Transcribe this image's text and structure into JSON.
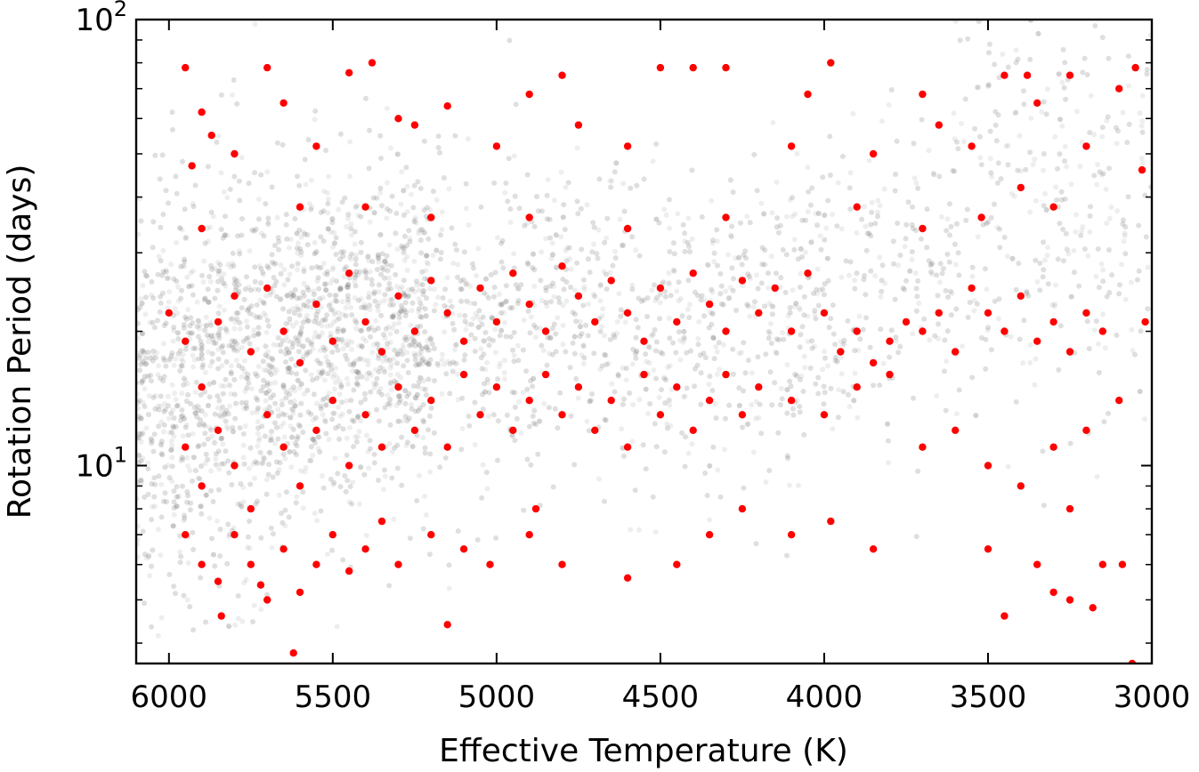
{
  "chart_data": {
    "type": "scatter",
    "xlabel": "Effective Temperature (K)",
    "ylabel": "Rotation Period (days)",
    "xlim": [
      6100,
      3000
    ],
    "x_inverted": true,
    "ylim": [
      3.6,
      100
    ],
    "y_scale": "log",
    "grid": false,
    "x_ticks": [
      {
        "value": 6000,
        "label": "6000"
      },
      {
        "value": 5500,
        "label": "5500"
      },
      {
        "value": 5000,
        "label": "5000"
      },
      {
        "value": 4500,
        "label": "4500"
      },
      {
        "value": 4000,
        "label": "4000"
      },
      {
        "value": 3500,
        "label": "3500"
      },
      {
        "value": 3000,
        "label": "3000"
      }
    ],
    "y_ticks": [
      {
        "value": 10,
        "base": "10",
        "exp": "1"
      },
      {
        "value": 100,
        "base": "10",
        "exp": "2"
      }
    ],
    "series": [
      {
        "role": "background",
        "color": "#7f7f7f",
        "description_of_trend": [
          {
            "teff": 6000,
            "p_median": 15
          },
          {
            "teff": 5800,
            "p_median": 19
          },
          {
            "teff": 5500,
            "p_median": 21
          },
          {
            "teff": 5000,
            "p_median": 22
          },
          {
            "teff": 4500,
            "p_median": 23
          },
          {
            "teff": 4000,
            "p_median": 24
          },
          {
            "teff": 3700,
            "p_median": 30
          },
          {
            "teff": 3500,
            "p_median": 40
          }
        ]
      },
      {
        "role": "highlight",
        "color": "#ff0000",
        "points": [
          [
            5950,
            78
          ],
          [
            5900,
            62
          ],
          [
            5870,
            55
          ],
          [
            5930,
            47
          ],
          [
            5800,
            50
          ],
          [
            5700,
            78
          ],
          [
            5650,
            65
          ],
          [
            5550,
            52
          ],
          [
            5450,
            76
          ],
          [
            5380,
            80
          ],
          [
            5300,
            60
          ],
          [
            5250,
            58
          ],
          [
            5150,
            64
          ],
          [
            5000,
            52
          ],
          [
            4900,
            68
          ],
          [
            4800,
            75
          ],
          [
            4750,
            58
          ],
          [
            4600,
            52
          ],
          [
            4500,
            78
          ],
          [
            4400,
            78
          ],
          [
            4300,
            78
          ],
          [
            4100,
            52
          ],
          [
            4050,
            68
          ],
          [
            3980,
            80
          ],
          [
            3850,
            50
          ],
          [
            3700,
            68
          ],
          [
            3650,
            58
          ],
          [
            3550,
            52
          ],
          [
            3450,
            75
          ],
          [
            3380,
            75
          ],
          [
            3350,
            65
          ],
          [
            3250,
            75
          ],
          [
            3200,
            52
          ],
          [
            3100,
            70
          ],
          [
            3050,
            78
          ],
          [
            3030,
            46
          ],
          [
            5900,
            34
          ],
          [
            5600,
            38
          ],
          [
            5400,
            38
          ],
          [
            5200,
            36
          ],
          [
            4900,
            36
          ],
          [
            4600,
            34
          ],
          [
            4300,
            36
          ],
          [
            3900,
            38
          ],
          [
            3700,
            34
          ],
          [
            3520,
            36
          ],
          [
            3400,
            42
          ],
          [
            3300,
            38
          ],
          [
            6000,
            22
          ],
          [
            5950,
            19
          ],
          [
            5900,
            15
          ],
          [
            5850,
            21
          ],
          [
            5800,
            24
          ],
          [
            5750,
            18
          ],
          [
            5700,
            25
          ],
          [
            5650,
            20
          ],
          [
            5600,
            17
          ],
          [
            5550,
            23
          ],
          [
            5500,
            19
          ],
          [
            5450,
            27
          ],
          [
            5400,
            21
          ],
          [
            5350,
            18
          ],
          [
            5300,
            24
          ],
          [
            5250,
            20
          ],
          [
            5200,
            26
          ],
          [
            5150,
            22
          ],
          [
            5100,
            19
          ],
          [
            5050,
            25
          ],
          [
            5000,
            21
          ],
          [
            4950,
            27
          ],
          [
            4900,
            23
          ],
          [
            4850,
            20
          ],
          [
            4800,
            28
          ],
          [
            4750,
            24
          ],
          [
            4700,
            21
          ],
          [
            4650,
            26
          ],
          [
            4600,
            22
          ],
          [
            4550,
            19
          ],
          [
            4500,
            25
          ],
          [
            4450,
            21
          ],
          [
            4400,
            27
          ],
          [
            4350,
            23
          ],
          [
            4300,
            20
          ],
          [
            4250,
            26
          ],
          [
            4200,
            22
          ],
          [
            4150,
            25
          ],
          [
            4100,
            20
          ],
          [
            4050,
            27
          ],
          [
            4000,
            22
          ],
          [
            3950,
            18
          ],
          [
            3900,
            20
          ],
          [
            3850,
            17
          ],
          [
            3800,
            19
          ],
          [
            3750,
            21
          ],
          [
            3700,
            20
          ],
          [
            3650,
            22
          ],
          [
            3600,
            18
          ],
          [
            3550,
            25
          ],
          [
            3500,
            22
          ],
          [
            3450,
            20
          ],
          [
            3400,
            24
          ],
          [
            3350,
            19
          ],
          [
            3300,
            21
          ],
          [
            3250,
            18
          ],
          [
            3200,
            22
          ],
          [
            3150,
            20
          ],
          [
            3020,
            21
          ],
          [
            5950,
            11
          ],
          [
            5900,
            9
          ],
          [
            5850,
            12
          ],
          [
            5800,
            10
          ],
          [
            5750,
            8
          ],
          [
            5700,
            13
          ],
          [
            5650,
            11
          ],
          [
            5600,
            9
          ],
          [
            5550,
            12
          ],
          [
            5500,
            14
          ],
          [
            5450,
            10
          ],
          [
            5400,
            13
          ],
          [
            5350,
            11
          ],
          [
            5300,
            15
          ],
          [
            5250,
            12
          ],
          [
            5200,
            14
          ],
          [
            5150,
            11
          ],
          [
            5100,
            16
          ],
          [
            5050,
            13
          ],
          [
            5000,
            15
          ],
          [
            4950,
            12
          ],
          [
            4900,
            14
          ],
          [
            4850,
            16
          ],
          [
            4800,
            13
          ],
          [
            4750,
            15
          ],
          [
            4700,
            12
          ],
          [
            4650,
            14
          ],
          [
            4600,
            11
          ],
          [
            4550,
            16
          ],
          [
            4500,
            13
          ],
          [
            4450,
            15
          ],
          [
            4400,
            12
          ],
          [
            4350,
            14
          ],
          [
            4300,
            16
          ],
          [
            4250,
            13
          ],
          [
            4200,
            15
          ],
          [
            4100,
            14
          ],
          [
            4000,
            13
          ],
          [
            3900,
            15
          ],
          [
            3800,
            16
          ],
          [
            3700,
            11
          ],
          [
            3600,
            12
          ],
          [
            3500,
            10
          ],
          [
            3400,
            9
          ],
          [
            3300,
            11
          ],
          [
            3250,
            8
          ],
          [
            3200,
            12
          ],
          [
            3100,
            14
          ],
          [
            5950,
            7
          ],
          [
            5900,
            6
          ],
          [
            5850,
            5.5
          ],
          [
            5800,
            7
          ],
          [
            5750,
            6
          ],
          [
            5700,
            5
          ],
          [
            5650,
            6.5
          ],
          [
            5600,
            5.2
          ],
          [
            5550,
            6
          ],
          [
            5500,
            7
          ],
          [
            5450,
            5.8
          ],
          [
            5400,
            6.5
          ],
          [
            5350,
            7.5
          ],
          [
            5300,
            6
          ],
          [
            5200,
            7
          ],
          [
            5100,
            6.5
          ],
          [
            4900,
            7
          ],
          [
            4800,
            6
          ],
          [
            4600,
            5.6
          ],
          [
            4450,
            6
          ],
          [
            4350,
            7
          ],
          [
            4250,
            8
          ],
          [
            4100,
            7
          ],
          [
            3980,
            7.5
          ],
          [
            3850,
            6.5
          ],
          [
            3500,
            6.5
          ],
          [
            3450,
            4.6
          ],
          [
            3350,
            6
          ],
          [
            3300,
            5.2
          ],
          [
            3250,
            5
          ],
          [
            3180,
            4.8
          ],
          [
            3150,
            6
          ],
          [
            3090,
            6
          ],
          [
            3060,
            3.6
          ],
          [
            5620,
            3.8
          ],
          [
            5150,
            4.4
          ],
          [
            5840,
            4.6
          ],
          [
            5720,
            5.4
          ],
          [
            4880,
            8
          ],
          [
            5020,
            6
          ]
        ]
      }
    ]
  }
}
